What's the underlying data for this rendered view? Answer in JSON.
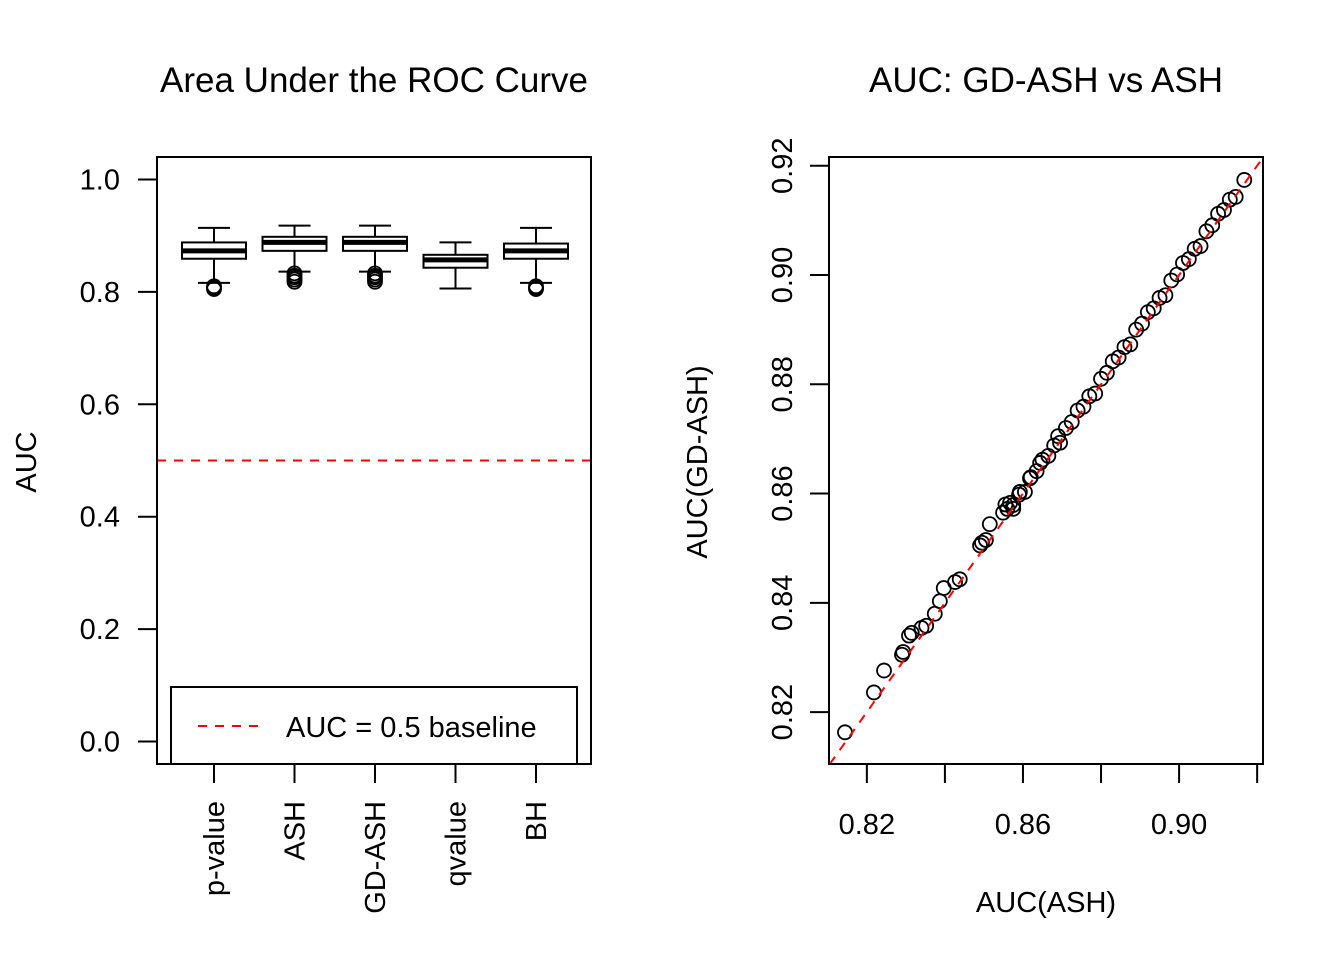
{
  "chart_data": [
    {
      "type": "boxplot",
      "title": "Area Under the ROC Curve",
      "xlabel": "",
      "ylabel": "AUC",
      "ylim": [
        -0.04,
        1.04
      ],
      "yticks": [
        0.0,
        0.2,
        0.4,
        0.6,
        0.8,
        1.0
      ],
      "ytick_labels": [
        "0.0",
        "0.2",
        "0.4",
        "0.6",
        "0.8",
        "1.0"
      ],
      "categories": [
        "p-value",
        "ASH",
        "GD-ASH",
        "qvalue",
        "BH"
      ],
      "boxes": [
        {
          "whisker_low": 0.816,
          "q1": 0.859,
          "median": 0.873,
          "q3": 0.888,
          "whisker_high": 0.914,
          "outliers": [
            0.81,
            0.807,
            0.805
          ]
        },
        {
          "whisker_low": 0.836,
          "q1": 0.873,
          "median": 0.888,
          "q3": 0.898,
          "whisker_high": 0.918,
          "outliers": [
            0.833,
            0.829,
            0.826,
            0.822,
            0.818
          ]
        },
        {
          "whisker_low": 0.836,
          "q1": 0.873,
          "median": 0.888,
          "q3": 0.898,
          "whisker_high": 0.918,
          "outliers": [
            0.833,
            0.829,
            0.826,
            0.822,
            0.818
          ]
        },
        {
          "whisker_low": 0.806,
          "q1": 0.843,
          "median": 0.857,
          "q3": 0.866,
          "whisker_high": 0.888,
          "outliers": []
        },
        {
          "whisker_low": 0.816,
          "q1": 0.859,
          "median": 0.873,
          "q3": 0.886,
          "whisker_high": 0.914,
          "outliers": [
            0.81,
            0.807,
            0.805
          ]
        }
      ],
      "reference_line": {
        "y": 0.5,
        "color": "#ff0000",
        "style": "dashed"
      },
      "legend": {
        "label": "AUC = 0.5 baseline",
        "position": "bottom"
      }
    },
    {
      "type": "scatter",
      "title": "AUC: GD-ASH vs ASH",
      "xlabel": "AUC(ASH)",
      "ylabel": "AUC(GD-ASH)",
      "xlim": [
        0.8103,
        0.9215
      ],
      "ylim": [
        0.8105,
        0.9216
      ],
      "xticks": [
        0.82,
        0.84,
        0.86,
        0.88,
        0.9,
        0.92
      ],
      "xtick_labels": [
        "0.82",
        "",
        "0.86",
        "",
        "0.90",
        ""
      ],
      "yticks": [
        0.82,
        0.84,
        0.86,
        0.88,
        0.9,
        0.92
      ],
      "ytick_labels": [
        "0.82",
        "0.84",
        "0.86",
        "0.88",
        "0.90",
        "0.92"
      ],
      "reference_line": {
        "type": "y=x",
        "color": "#ff0000",
        "style": "dashed"
      },
      "x": [
        0.8144,
        0.8218,
        0.8244,
        0.829,
        0.8293,
        0.8308,
        0.8315,
        0.834,
        0.8352,
        0.8374,
        0.8387,
        0.8397,
        0.8426,
        0.8438,
        0.849,
        0.8495,
        0.8505,
        0.8515,
        0.8549,
        0.8555,
        0.8567,
        0.8575,
        0.8592,
        0.8618,
        0.8644,
        0.869,
        0.856,
        0.8575,
        0.859,
        0.8605,
        0.862,
        0.8635,
        0.865,
        0.8665,
        0.868,
        0.8695,
        0.871,
        0.8725,
        0.874,
        0.8755,
        0.877,
        0.8785,
        0.88,
        0.8815,
        0.883,
        0.8845,
        0.886,
        0.8875,
        0.889,
        0.8905,
        0.892,
        0.8935,
        0.895,
        0.8965,
        0.898,
        0.8995,
        0.901,
        0.9025,
        0.904,
        0.9055,
        0.907,
        0.9085,
        0.91,
        0.9115,
        0.913,
        0.9145,
        0.9167
      ],
      "y": [
        0.8163,
        0.8236,
        0.8276,
        0.8305,
        0.831,
        0.834,
        0.8345,
        0.8354,
        0.8358,
        0.838,
        0.8403,
        0.8427,
        0.8438,
        0.8443,
        0.8505,
        0.851,
        0.8515,
        0.8544,
        0.8565,
        0.858,
        0.8583,
        0.8572,
        0.8603,
        0.8628,
        0.8656,
        0.8705,
        0.8572,
        0.8579,
        0.8598,
        0.8603,
        0.863,
        0.8641,
        0.8662,
        0.8669,
        0.8688,
        0.8693,
        0.872,
        0.8731,
        0.8752,
        0.8759,
        0.8778,
        0.8783,
        0.881,
        0.8821,
        0.8842,
        0.8849,
        0.8868,
        0.8873,
        0.89,
        0.8911,
        0.8932,
        0.8939,
        0.8958,
        0.8963,
        0.899,
        0.9001,
        0.9022,
        0.9029,
        0.9048,
        0.9053,
        0.908,
        0.9091,
        0.9112,
        0.9119,
        0.9138,
        0.9143,
        0.9174
      ]
    }
  ]
}
